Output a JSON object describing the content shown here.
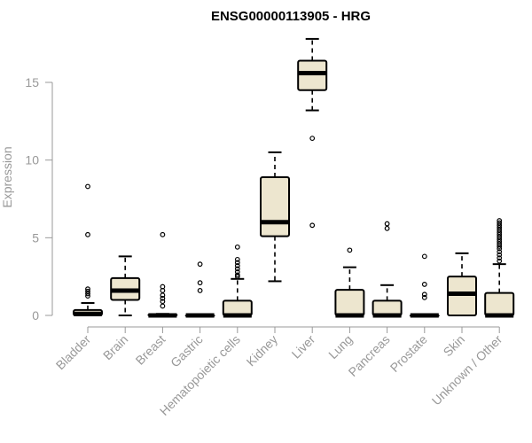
{
  "chart_data": {
    "type": "box",
    "title": "ENSG00000113905 - HRG",
    "xlabel": "",
    "ylabel": "Expression",
    "ylim": [
      -0.7,
      17.5
    ],
    "yticks": [
      0,
      5,
      10,
      15
    ],
    "categories": [
      "Bladder",
      "Brain",
      "Breast",
      "Gastric",
      "Hematopoietic cells",
      "Kidney",
      "Liver",
      "Lung",
      "Pancreas",
      "Prostate",
      "Skin",
      "Unknown / Other"
    ],
    "boxes": [
      {
        "min": 0.0,
        "q1": 0.0,
        "median": 0.1,
        "q3": 0.35,
        "max": 0.8,
        "outliers": [
          8.3,
          5.2,
          1.7,
          1.55,
          1.4,
          1.25
        ]
      },
      {
        "min": 0.0,
        "q1": 1.0,
        "median": 1.6,
        "q3": 2.4,
        "max": 3.8,
        "outliers": []
      },
      {
        "min": 0.0,
        "q1": 0.0,
        "median": 0.0,
        "q3": 0.05,
        "max": 0.1,
        "outliers": [
          5.2,
          1.85,
          1.6,
          1.3,
          1.1,
          0.9,
          0.6
        ]
      },
      {
        "min": 0.0,
        "q1": 0.0,
        "median": 0.0,
        "q3": 0.0,
        "max": 0.0,
        "outliers": [
          3.3,
          2.1,
          1.6
        ]
      },
      {
        "min": 0.0,
        "q1": 0.0,
        "median": 0.0,
        "q3": 0.95,
        "max": 2.35,
        "outliers": [
          4.4,
          3.6,
          3.4,
          3.2,
          3.0,
          2.8,
          2.6,
          2.5
        ]
      },
      {
        "min": 2.2,
        "q1": 5.1,
        "median": 6.0,
        "q3": 8.9,
        "max": 10.5,
        "outliers": []
      },
      {
        "min": 13.2,
        "q1": 14.5,
        "median": 15.6,
        "q3": 16.4,
        "max": 17.8,
        "outliers": [
          11.4,
          5.8
        ]
      },
      {
        "min": 0.0,
        "q1": 0.0,
        "median": 0.0,
        "q3": 1.65,
        "max": 3.1,
        "outliers": [
          4.2
        ]
      },
      {
        "min": 0.0,
        "q1": 0.0,
        "median": 0.0,
        "q3": 0.95,
        "max": 1.95,
        "outliers": [
          5.9,
          5.6
        ]
      },
      {
        "min": 0.0,
        "q1": 0.0,
        "median": 0.0,
        "q3": 0.0,
        "max": 0.0,
        "outliers": [
          3.8,
          2.0,
          1.35,
          1.15
        ]
      },
      {
        "min": 0.0,
        "q1": 0.0,
        "median": 1.4,
        "q3": 2.5,
        "max": 4.0,
        "outliers": []
      },
      {
        "min": 0.0,
        "q1": 0.0,
        "median": 0.0,
        "q3": 1.45,
        "max": 3.3,
        "outliers": [
          6.1,
          5.95,
          5.8,
          5.65,
          5.5,
          5.35,
          5.2,
          5.05,
          4.9,
          4.75,
          4.6,
          4.45,
          4.3,
          4.1,
          3.9,
          3.7,
          3.5
        ]
      }
    ]
  }
}
